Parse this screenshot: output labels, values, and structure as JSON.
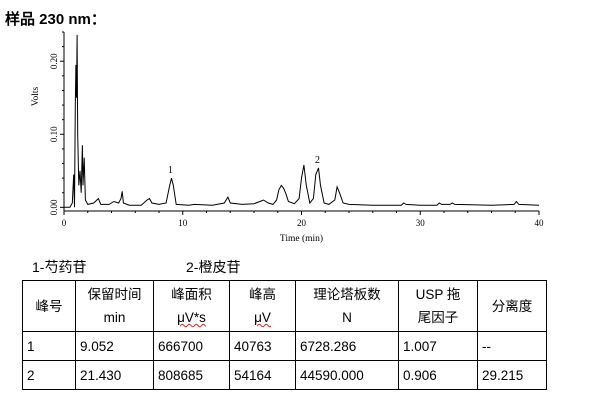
{
  "heading": "样品 230 nm：",
  "chart_data": {
    "type": "line",
    "xlabel": "Time (min)",
    "ylabel": "Volts",
    "xlim": [
      0,
      40
    ],
    "ylim": [
      -0.005,
      0.24
    ],
    "xticks": [
      0,
      10,
      20,
      30,
      40
    ],
    "yticks": [
      0.0,
      0.1,
      0.2
    ],
    "ytick_labels": [
      "0.00",
      "0.10",
      "0.20"
    ],
    "peak_labels": [
      {
        "text": "1",
        "x": 9.05,
        "y": 0.04
      },
      {
        "text": "2",
        "x": 21.43,
        "y": 0.054
      }
    ],
    "series": [
      {
        "points": [
          [
            0.0,
            0.0
          ],
          [
            0.5,
            0.0
          ],
          [
            0.7,
            0.006
          ],
          [
            0.82,
            0.045
          ],
          [
            0.88,
            0.0
          ],
          [
            0.95,
            0.14
          ],
          [
            1.0,
            0.195
          ],
          [
            1.05,
            0.15
          ],
          [
            1.1,
            0.236
          ],
          [
            1.15,
            0.1
          ],
          [
            1.25,
            0.03
          ],
          [
            1.35,
            0.05
          ],
          [
            1.45,
            0.02
          ],
          [
            1.55,
            0.085
          ],
          [
            1.6,
            0.03
          ],
          [
            1.7,
            0.068
          ],
          [
            1.8,
            0.01
          ],
          [
            2.0,
            0.004
          ],
          [
            2.5,
            0.006
          ],
          [
            2.9,
            0.012
          ],
          [
            3.1,
            0.004
          ],
          [
            3.8,
            0.004
          ],
          [
            4.2,
            0.008
          ],
          [
            4.6,
            0.006
          ],
          [
            4.8,
            0.012
          ],
          [
            4.9,
            0.022
          ],
          [
            5.0,
            0.006
          ],
          [
            5.5,
            0.003
          ],
          [
            6.5,
            0.003
          ],
          [
            7.0,
            0.01
          ],
          [
            7.2,
            0.012
          ],
          [
            7.4,
            0.006
          ],
          [
            8.0,
            0.004
          ],
          [
            8.6,
            0.006
          ],
          [
            8.9,
            0.03
          ],
          [
            9.05,
            0.04
          ],
          [
            9.2,
            0.03
          ],
          [
            9.45,
            0.004
          ],
          [
            10.5,
            0.003
          ],
          [
            11.0,
            0.004
          ],
          [
            12.5,
            0.003
          ],
          [
            13.5,
            0.006
          ],
          [
            13.8,
            0.014
          ],
          [
            14.0,
            0.006
          ],
          [
            15.0,
            0.004
          ],
          [
            16.0,
            0.005
          ],
          [
            16.5,
            0.008
          ],
          [
            16.8,
            0.01
          ],
          [
            17.2,
            0.006
          ],
          [
            17.6,
            0.004
          ],
          [
            17.9,
            0.01
          ],
          [
            18.1,
            0.024
          ],
          [
            18.3,
            0.03
          ],
          [
            18.5,
            0.026
          ],
          [
            18.7,
            0.018
          ],
          [
            18.9,
            0.008
          ],
          [
            19.4,
            0.005
          ],
          [
            19.8,
            0.012
          ],
          [
            20.0,
            0.04
          ],
          [
            20.2,
            0.058
          ],
          [
            20.4,
            0.03
          ],
          [
            20.7,
            0.006
          ],
          [
            21.0,
            0.012
          ],
          [
            21.2,
            0.045
          ],
          [
            21.43,
            0.054
          ],
          [
            21.6,
            0.03
          ],
          [
            21.9,
            0.006
          ],
          [
            22.3,
            0.004
          ],
          [
            22.8,
            0.01
          ],
          [
            23.0,
            0.028
          ],
          [
            23.2,
            0.02
          ],
          [
            23.5,
            0.006
          ],
          [
            24.0,
            0.004
          ],
          [
            26.0,
            0.003
          ],
          [
            28.4,
            0.003
          ],
          [
            28.6,
            0.006
          ],
          [
            28.8,
            0.004
          ],
          [
            30.0,
            0.003
          ],
          [
            31.4,
            0.003
          ],
          [
            31.6,
            0.006
          ],
          [
            31.8,
            0.004
          ],
          [
            32.5,
            0.004
          ],
          [
            32.7,
            0.006
          ],
          [
            32.9,
            0.004
          ],
          [
            36.0,
            0.003
          ],
          [
            37.9,
            0.004
          ],
          [
            38.1,
            0.008
          ],
          [
            38.3,
            0.004
          ],
          [
            40.0,
            0.003
          ]
        ]
      }
    ]
  },
  "legend": {
    "peak_1": "1-芍药苷",
    "peak_2": "2-橙皮苷"
  },
  "table": {
    "headers": [
      {
        "line1": "峰号",
        "line2": ""
      },
      {
        "line1": "保留时间",
        "line2": "min"
      },
      {
        "line1": "峰面积",
        "line2": "μV*s"
      },
      {
        "line1": "峰高",
        "line2": "μV"
      },
      {
        "line1": "理论塔板数",
        "line2": "N"
      },
      {
        "line1": "USP 拖",
        "line2": "尾因子"
      },
      {
        "line1": "分离度",
        "line2": ""
      }
    ],
    "rows": [
      [
        "1",
        "9.052",
        "666700",
        "40763",
        "6728.286",
        "1.007",
        "--"
      ],
      [
        "2",
        "21.430",
        "808685",
        "54164",
        "44590.000",
        "0.906",
        "29.215"
      ]
    ]
  }
}
